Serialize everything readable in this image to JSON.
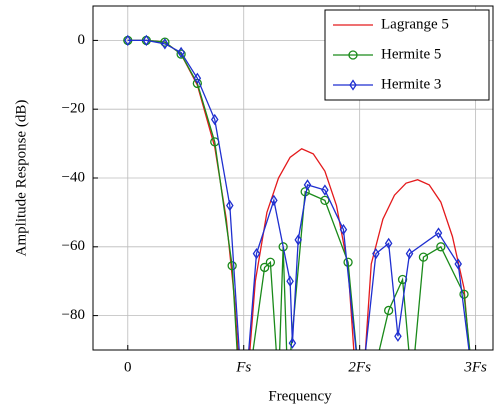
{
  "chart_data": {
    "type": "line",
    "xlabel": "Frequency",
    "ylabel": "Amplitude Response (dB)",
    "xlim": [
      -0.3,
      3.15
    ],
    "ylim": [
      -90,
      10
    ],
    "xticks": [
      0,
      {
        "value": 1,
        "label": "Fs"
      },
      {
        "value": 2,
        "label": "2Fs"
      },
      {
        "value": 3,
        "label": "3Fs"
      }
    ],
    "yticks": [
      0,
      {
        "value": -20,
        "label": "−20"
      },
      {
        "value": -40,
        "label": "−40"
      },
      {
        "value": -60,
        "label": "−60"
      },
      {
        "value": -80,
        "label": "−80"
      }
    ],
    "grid": true,
    "legend": "upper right",
    "series": [
      {
        "name": "Lagrange 5",
        "color": "#e41a1c",
        "marker": "none",
        "x": [
          0,
          0.16,
          0.32,
          0.46,
          0.6,
          0.75,
          0.85,
          0.92,
          0.97,
          1.0,
          1.03,
          1.1,
          1.2,
          1.3,
          1.4,
          1.5,
          1.6,
          1.7,
          1.8,
          1.9,
          1.97,
          2.0,
          2.03,
          2.1,
          2.2,
          2.3,
          2.4,
          2.5,
          2.6,
          2.7,
          2.8,
          2.9,
          2.97
        ],
        "values": [
          0,
          0,
          -0.5,
          -4,
          -13,
          -31,
          -52,
          -75,
          -100,
          null,
          -100,
          -70,
          -50,
          -40,
          -34,
          -31.5,
          -33,
          -38,
          -48,
          -66,
          -100,
          null,
          -100,
          -65,
          -52,
          -45,
          -41.5,
          -40.5,
          -42,
          -47,
          -57,
          -72,
          -100
        ]
      },
      {
        "name": "Hermite 5",
        "color": "#1a8a1a",
        "marker": "circle",
        "x": [
          0,
          0.16,
          0.32,
          0.46,
          0.6,
          0.75,
          0.9,
          0.96,
          1.0,
          1.04,
          1.18,
          1.23,
          1.3,
          1.34,
          1.38,
          1.53,
          1.7,
          1.9,
          2.0,
          2.1,
          2.25,
          2.37,
          2.45,
          2.55,
          2.7,
          2.9,
          2.98
        ],
        "values": [
          0,
          0,
          -0.5,
          -4,
          -12.5,
          -29.5,
          -65.5,
          -100,
          null,
          -100,
          -66,
          -64.5,
          -100,
          -60,
          -100,
          -44,
          -46.5,
          -64.5,
          -100,
          -100,
          -78.5,
          -69.5,
          -100,
          -63,
          -60,
          -73.8,
          -100
        ]
      },
      {
        "name": "Hermite 3",
        "color": "#1f2fd0",
        "marker": "diamond",
        "x": [
          0,
          0.16,
          0.32,
          0.46,
          0.6,
          0.75,
          0.88,
          0.98,
          1.0,
          1.02,
          1.11,
          1.26,
          1.4,
          1.42,
          1.47,
          1.55,
          1.7,
          1.86,
          2.0,
          2.02,
          2.14,
          2.25,
          2.33,
          2.43,
          2.68,
          2.85,
          2.98
        ],
        "values": [
          0,
          0,
          -1,
          -3.5,
          -11,
          -23,
          -48,
          -100,
          null,
          -100,
          -62,
          -46.5,
          -70,
          -88,
          -58,
          -42,
          -43.5,
          -55,
          -100,
          -100,
          -62,
          -59,
          -86,
          -62,
          -56,
          -65,
          -100
        ]
      }
    ]
  }
}
